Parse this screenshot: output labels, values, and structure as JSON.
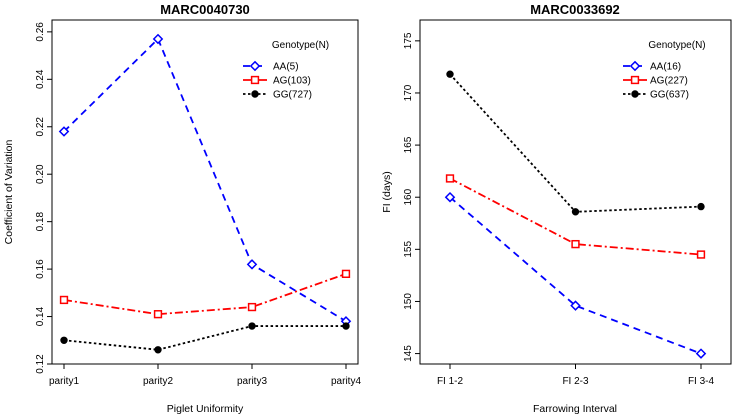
{
  "chart_data": [
    {
      "type": "line",
      "title": "MARC0040730",
      "xlabel": "Piglet Uniformity",
      "ylabel": "Coefficient of Variation",
      "categories": [
        "parity1",
        "parity2",
        "parity3",
        "parity4"
      ],
      "ylim": [
        0.12,
        0.265
      ],
      "yticks": [
        0.12,
        0.14,
        0.16,
        0.18,
        0.2,
        0.22,
        0.24,
        0.26
      ],
      "ytick_labels": [
        "0.12",
        "0.14",
        "0.16",
        "0.18",
        "0.20",
        "0.22",
        "0.24",
        "0.26"
      ],
      "legend_title": "Genotype(N)",
      "legend_position": "top-right",
      "series": [
        {
          "name": "AA(5)",
          "color": "#0000ff",
          "marker": "diamond",
          "dash": "long",
          "values": [
            0.218,
            0.257,
            0.162,
            0.138
          ]
        },
        {
          "name": "AG(103)",
          "color": "#ff0000",
          "marker": "square",
          "dash": "dashdot",
          "values": [
            0.147,
            0.141,
            0.144,
            0.158
          ]
        },
        {
          "name": "GG(727)",
          "color": "#000000",
          "marker": "circle",
          "dash": "dotted",
          "values": [
            0.13,
            0.126,
            0.136,
            0.136
          ]
        }
      ]
    },
    {
      "type": "line",
      "title": "MARC0033692",
      "xlabel": "Farrowing Interval",
      "ylabel": "FI (days)",
      "categories": [
        "FI 1-2",
        "FI 2-3",
        "FI 3-4"
      ],
      "ylim": [
        144,
        177
      ],
      "yticks": [
        145,
        150,
        155,
        160,
        165,
        170,
        175
      ],
      "ytick_labels": [
        "145",
        "150",
        "155",
        "160",
        "165",
        "170",
        "175"
      ],
      "legend_title": "Genotype(N)",
      "legend_position": "top-right",
      "series": [
        {
          "name": "AA(16)",
          "color": "#0000ff",
          "marker": "diamond",
          "dash": "long",
          "values": [
            160.0,
            149.6,
            145.0
          ]
        },
        {
          "name": "AG(227)",
          "color": "#ff0000",
          "marker": "square",
          "dash": "dashdot",
          "values": [
            161.8,
            155.5,
            154.5
          ]
        },
        {
          "name": "GG(637)",
          "color": "#000000",
          "marker": "circle",
          "dash": "dotted",
          "values": [
            171.8,
            158.6,
            159.1
          ]
        }
      ]
    }
  ]
}
